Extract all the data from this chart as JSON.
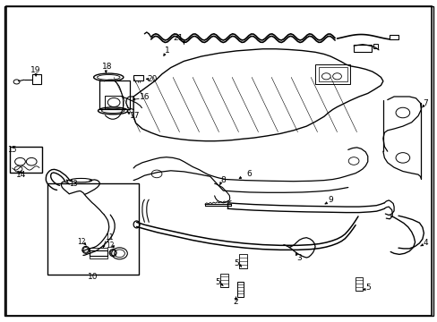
{
  "bg_color": "#ffffff",
  "line_color": "#000000",
  "figsize": [
    4.89,
    3.6
  ],
  "dpi": 100,
  "border": [
    0.01,
    0.01,
    0.98,
    0.98
  ]
}
